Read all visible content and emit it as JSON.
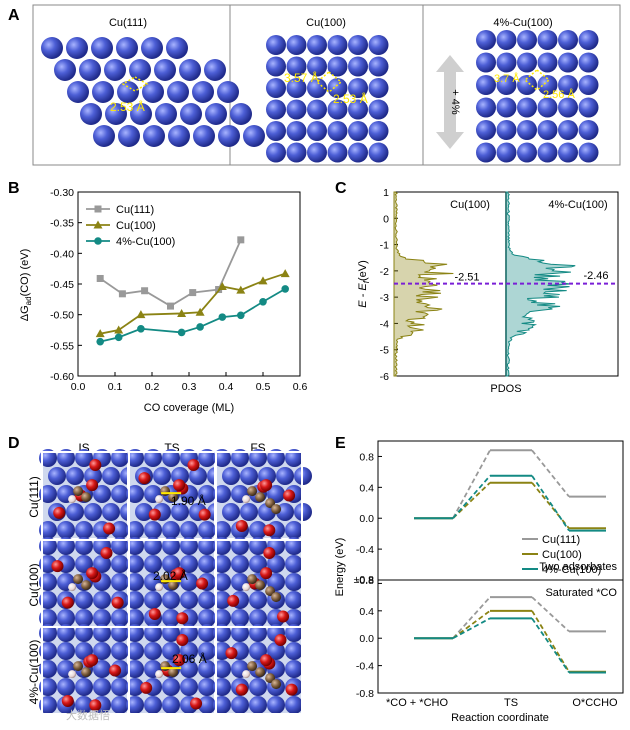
{
  "panels": {
    "A": {
      "label": "A",
      "subpanels": [
        {
          "title": "Cu(111)",
          "dist1": "2.53 Å"
        },
        {
          "title": "Cu(100)",
          "dist1": "3.57 Å",
          "dist2": "2.53 Å"
        },
        {
          "title": "4%-Cu(100)",
          "dist1": "3.7 Å",
          "dist2": "2.56 Å",
          "strain": "+ 4%"
        }
      ]
    },
    "B": {
      "label": "B"
    },
    "C": {
      "label": "C"
    },
    "D": {
      "label": "D",
      "columns": [
        "IS",
        "TS",
        "FS"
      ],
      "rows": [
        "Cu(111)",
        "Cu(100)",
        "4%-Cu(100)"
      ],
      "distances": [
        "1.90 Å",
        "2.02 Å",
        "2.06 Å"
      ]
    },
    "E": {
      "label": "E"
    }
  },
  "chart_data": [
    {
      "id": "B",
      "type": "line",
      "xlabel": "CO coverage (ML)",
      "ylabel": "ΔGad(CO) (eV)",
      "ylabel_main": "ΔG",
      "ylabel_sub": "ad",
      "ylabel_tail": "(CO) (eV)",
      "xlim": [
        0.0,
        0.6
      ],
      "ylim": [
        -0.6,
        -0.3
      ],
      "xticks": [
        "0.0",
        "0.1",
        "0.2",
        "0.3",
        "0.4",
        "0.5",
        "0.6"
      ],
      "yticks": [
        "-0.30",
        "-0.35",
        "-0.40",
        "-0.45",
        "-0.50",
        "-0.55",
        "-0.60"
      ],
      "legend_position": "top-left",
      "series": [
        {
          "name": "Cu(111)",
          "color": "#999999",
          "marker": "square",
          "x": [
            0.06,
            0.12,
            0.18,
            0.25,
            0.31,
            0.38,
            0.44
          ],
          "y": [
            -0.441,
            -0.466,
            -0.461,
            -0.486,
            -0.464,
            -0.459,
            -0.378
          ]
        },
        {
          "name": "Cu(100)",
          "color": "#8b8314",
          "marker": "triangle",
          "x": [
            0.06,
            0.11,
            0.17,
            0.28,
            0.33,
            0.39,
            0.44,
            0.5,
            0.56
          ],
          "y": [
            -0.531,
            -0.525,
            -0.5,
            -0.498,
            -0.496,
            -0.454,
            -0.46,
            -0.445,
            -0.433
          ]
        },
        {
          "name": "4%-Cu(100)",
          "color": "#138a84",
          "marker": "circle",
          "x": [
            0.06,
            0.11,
            0.17,
            0.28,
            0.33,
            0.39,
            0.44,
            0.5,
            0.56
          ],
          "y": [
            -0.544,
            -0.537,
            -0.523,
            -0.529,
            -0.52,
            -0.504,
            -0.501,
            -0.479,
            -0.458
          ]
        }
      ]
    },
    {
      "id": "C",
      "type": "area",
      "xlabel": "PDOS",
      "ylabel": "E - Ef (eV)",
      "ylabel_main": "E - E",
      "ylabel_sub": "f",
      "ylabel_tail": "(eV)",
      "ylim": [
        -6,
        1
      ],
      "yticks": [
        "1",
        "0",
        "-1",
        "-2",
        "-3",
        "-4",
        "-5",
        "-6"
      ],
      "series": [
        {
          "name": "Cu(100)",
          "color": "#8b8314",
          "band_center": -2.51,
          "band_center_label": "-2.51"
        },
        {
          "name": "4%-Cu(100)",
          "color": "#138a84",
          "band_center": -2.46,
          "band_center_label": "-2.46"
        }
      ],
      "dashed_line_color": "#7a1fd6"
    },
    {
      "id": "E",
      "type": "line",
      "xlabel": "Reaction coordinate",
      "ylabel": "Energy (eV)",
      "categories": [
        "*CO + *CHO",
        "TS",
        "O*CCHO"
      ],
      "legend_position": "right",
      "series_names": [
        "Cu(111)",
        "Cu(100)",
        "4%-Cu(100)"
      ],
      "series_colors": [
        "#999999",
        "#8b8314",
        "#138a84"
      ],
      "subplots": [
        {
          "label": "Two adsorbates",
          "ylim": [
            -0.8,
            1.0
          ],
          "yticks": [
            "0.8",
            "0.4",
            "0.0",
            "-0.4",
            "-0.8"
          ],
          "values": {
            "Cu(111)": [
              0.0,
              0.88,
              0.28
            ],
            "Cu(100)": [
              0.0,
              0.46,
              -0.13
            ],
            "4%-Cu(100)": [
              0.0,
              0.55,
              -0.16
            ]
          }
        },
        {
          "label": "Saturated *CO",
          "ylim": [
            -0.8,
            0.8
          ],
          "yticks": [
            "0.8",
            "0.4",
            "0.0",
            "-0.4",
            "-0.8"
          ],
          "values": {
            "Cu(111)": [
              0.0,
              0.6,
              0.1
            ],
            "Cu(100)": [
              0.0,
              0.4,
              -0.49
            ],
            "4%-Cu(100)": [
              0.0,
              0.29,
              -0.5
            ]
          }
        }
      ]
    }
  ],
  "watermark": "大数据悟"
}
